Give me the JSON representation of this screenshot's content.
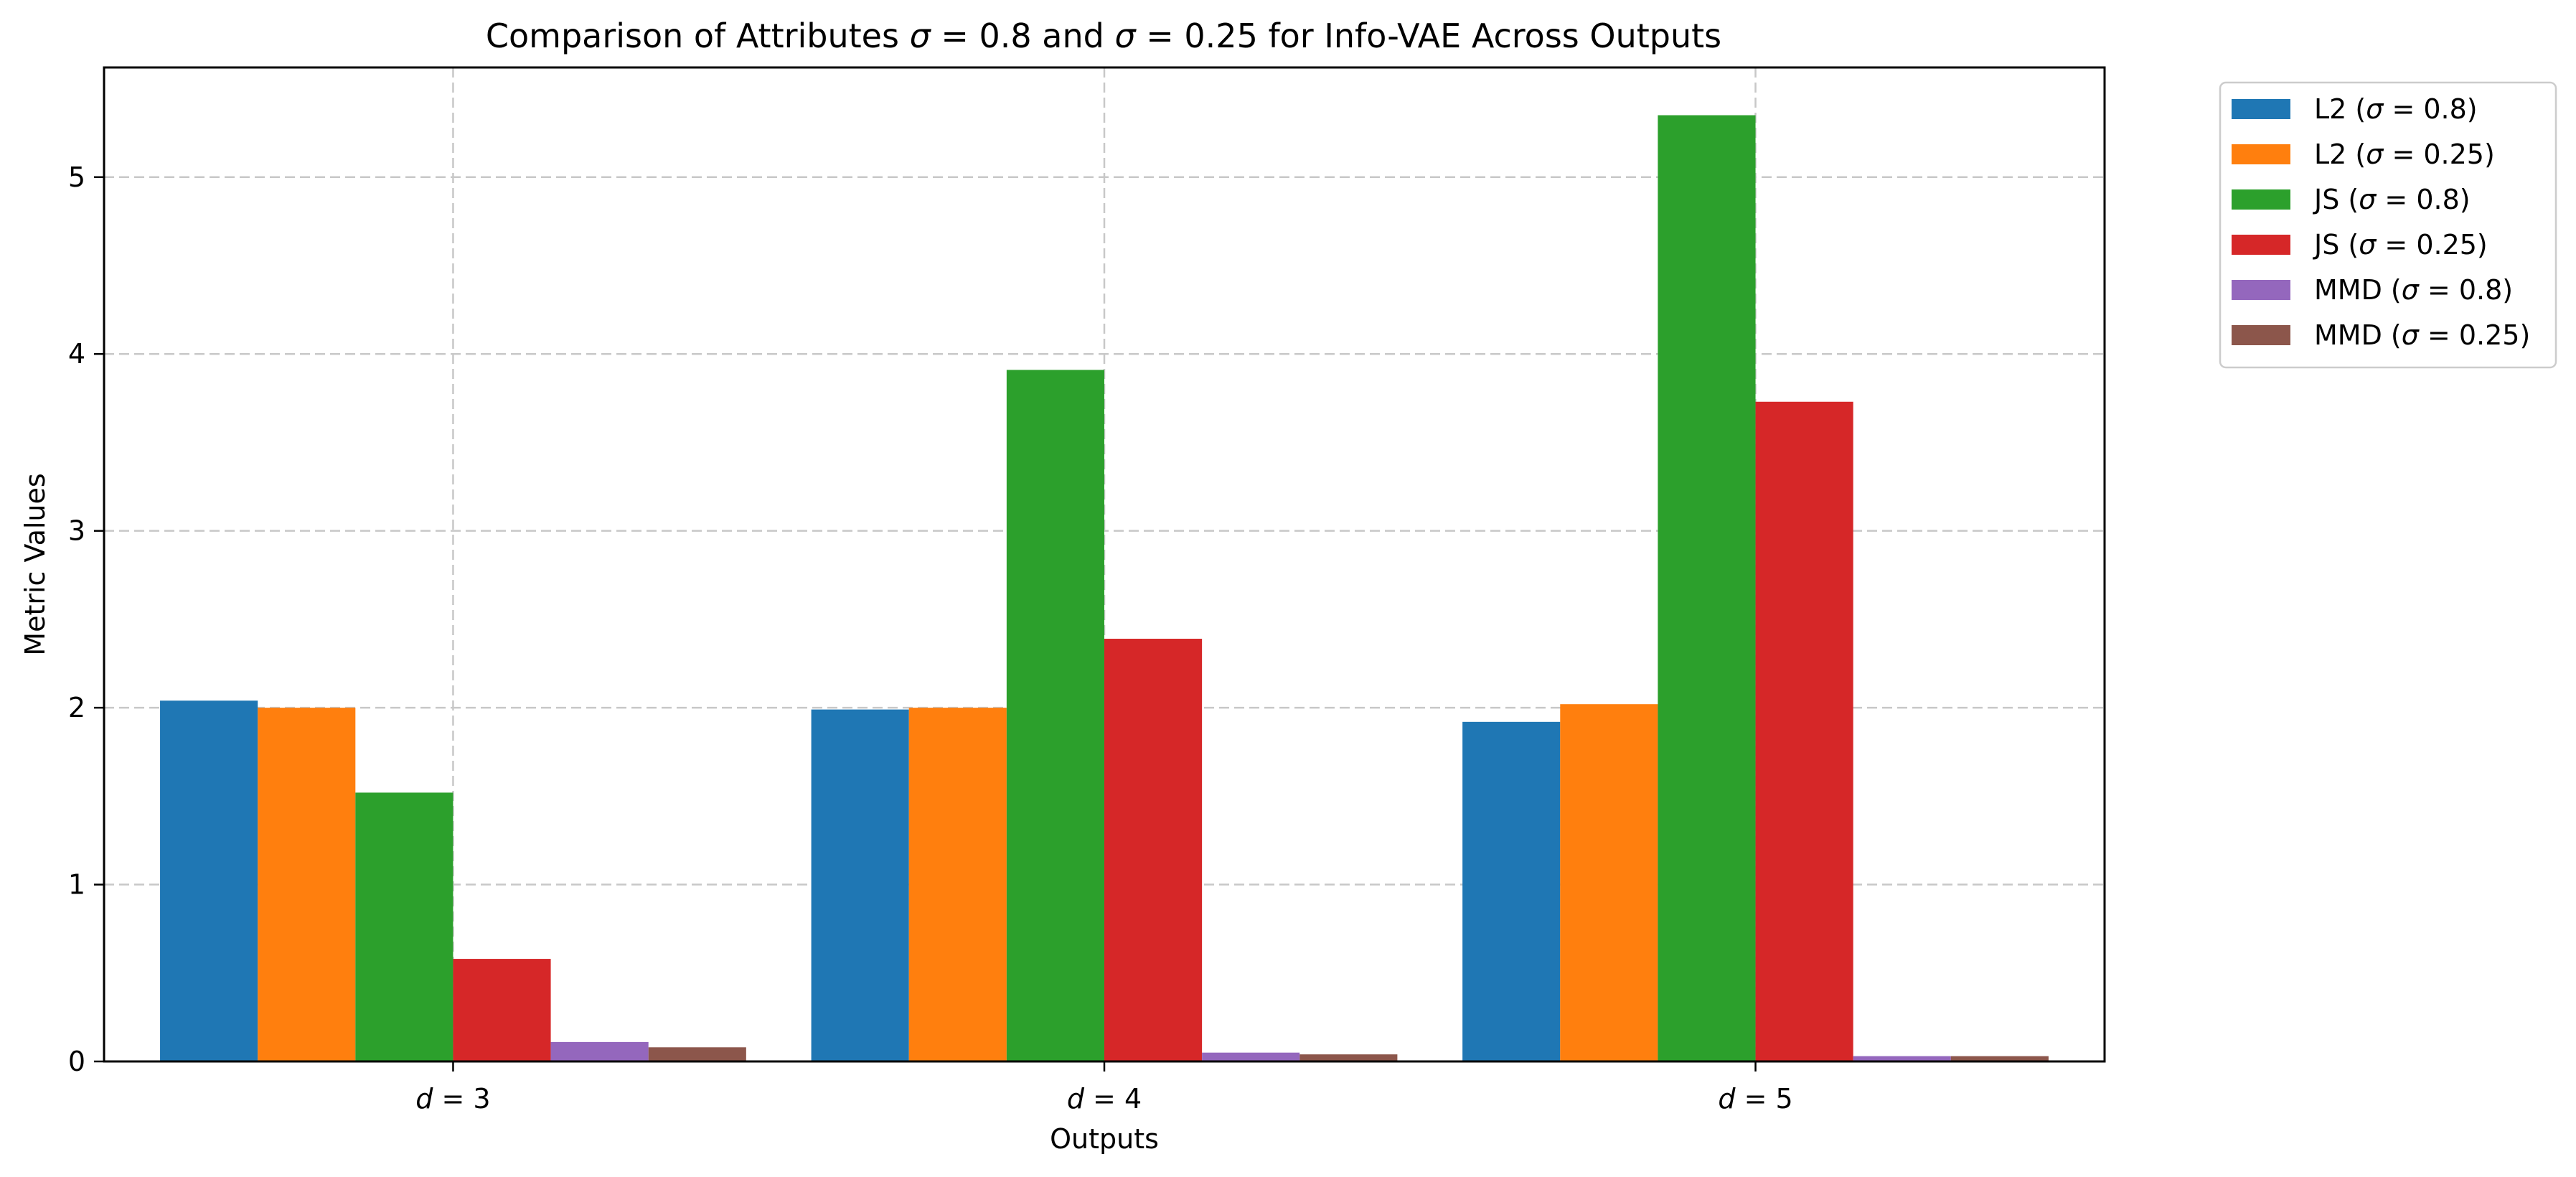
{
  "chart_data": {
    "type": "bar",
    "title": "Comparison of Attributes σ = 0.8 and σ = 0.25  for Info-VAE Across Outputs",
    "xlabel": "Outputs",
    "ylabel": "Metric Values",
    "categories": [
      "d = 3",
      "d = 4",
      "d = 5"
    ],
    "ylim": [
      0,
      5.62
    ],
    "yticks": [
      0,
      1,
      2,
      3,
      4,
      5
    ],
    "grid": true,
    "legend_position": "outside-top-right",
    "series": [
      {
        "name": "L2 (σ = 0.8)",
        "color": "#1f77b4",
        "values": [
          2.04,
          1.99,
          1.92
        ]
      },
      {
        "name": "L2 (σ = 0.25)",
        "color": "#ff7f0e",
        "values": [
          2.0,
          2.0,
          2.02
        ]
      },
      {
        "name": "JS (σ = 0.8)",
        "color": "#2ca02c",
        "values": [
          1.52,
          3.91,
          5.35
        ]
      },
      {
        "name": "JS (σ = 0.25)",
        "color": "#d62728",
        "values": [
          0.58,
          2.39,
          3.73
        ]
      },
      {
        "name": "MMD (σ = 0.8)",
        "color": "#9467bd",
        "values": [
          0.11,
          0.05,
          0.03
        ]
      },
      {
        "name": "MMD (σ = 0.25)",
        "color": "#8c564b",
        "values": [
          0.08,
          0.04,
          0.03
        ]
      }
    ]
  }
}
